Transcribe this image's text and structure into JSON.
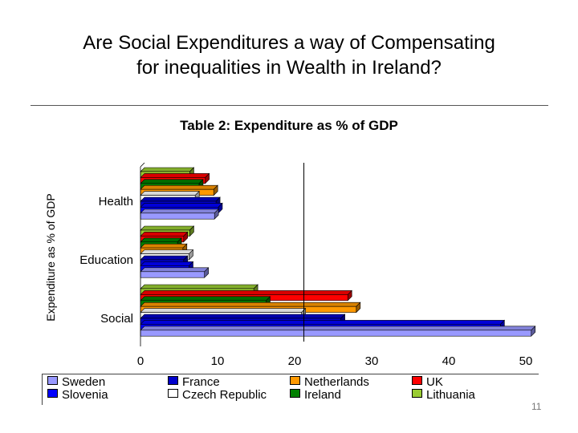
{
  "slide": {
    "title_line1": "Are Social Expenditures a way of Compensating",
    "title_line2": "for inequalities in Wealth in Ireland?",
    "page_number": "11"
  },
  "chart_data": {
    "type": "bar",
    "orientation": "horizontal",
    "title": "Table 2: Expenditure as % of GDP",
    "xlabel": "",
    "ylabel": "Expenditure as % of GDP",
    "xlim": [
      0,
      50
    ],
    "xticks": [
      "0",
      "10",
      "20",
      "30",
      "40",
      "50"
    ],
    "categories": [
      "Health",
      "Education",
      "Social"
    ],
    "grid": false,
    "legend_position": "bottom",
    "series": [
      {
        "name": "Sweden",
        "color": "#9999ff",
        "values": [
          9.6,
          8.3,
          50.7
        ]
      },
      {
        "name": "Slovenia",
        "color": "#0000ff",
        "values": [
          10.1,
          6.3,
          46.7
        ]
      },
      {
        "name": "France",
        "color": "#0000cc",
        "values": [
          9.8,
          5.6,
          26.0
        ]
      },
      {
        "name": "Czech Republic",
        "color": "#ffffff",
        "values": [
          7.1,
          6.3,
          20.9
        ]
      },
      {
        "name": "Netherlands",
        "color": "#ff9900",
        "values": [
          9.5,
          5.5,
          28.0
        ]
      },
      {
        "name": "Ireland",
        "color": "#008000",
        "values": [
          7.6,
          4.8,
          16.3
        ]
      },
      {
        "name": "UK",
        "color": "#ff0000",
        "values": [
          8.4,
          5.6,
          26.9
        ]
      },
      {
        "name": "Lithuania",
        "color": "#99cc33",
        "values": [
          6.4,
          6.4,
          14.7
        ]
      }
    ],
    "reference_line_x": 21.2,
    "legend_order": [
      "Sweden",
      "France",
      "Netherlands",
      "UK",
      "Slovenia",
      "Czech Republic",
      "Ireland",
      "Lithuania"
    ]
  }
}
